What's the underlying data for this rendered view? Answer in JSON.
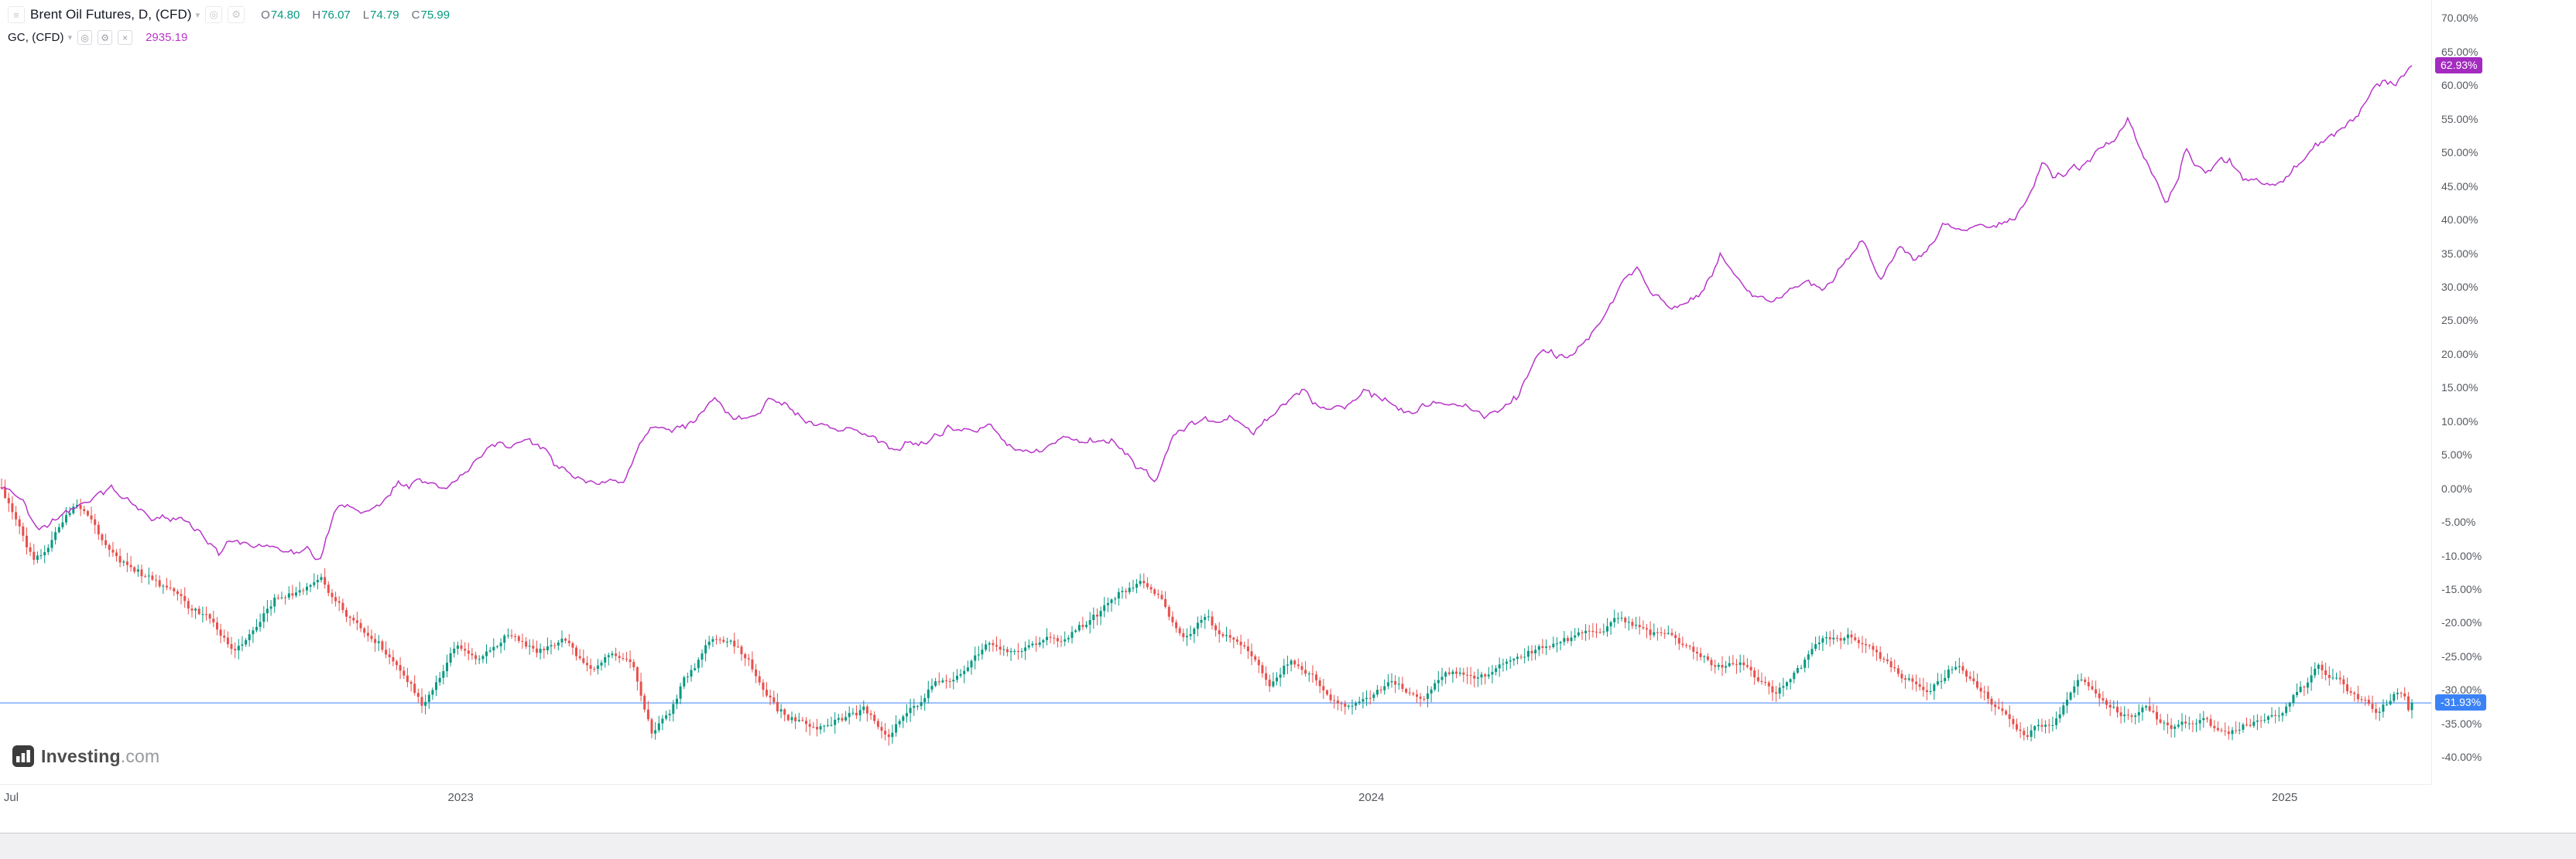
{
  "icons": {
    "instrument": "≡",
    "caret": "▾",
    "eye": "◎",
    "gear": "⚙",
    "close": "×"
  },
  "legend": {
    "main": {
      "title": "Brent Oil Futures, D, (CFD)",
      "ohlc": [
        {
          "label": "O",
          "value": "74.80"
        },
        {
          "label": "H",
          "value": "76.07"
        },
        {
          "label": "L",
          "value": "74.79"
        },
        {
          "label": "C",
          "value": "75.99"
        }
      ]
    },
    "overlay": {
      "title": "GC, (CFD)",
      "value": "2935.19"
    }
  },
  "footer": {
    "logo_bold": "Investing",
    "logo_light": ".com"
  },
  "chart_data": {
    "type": "mixed",
    "description": "Daily percent-change comparison since July 2022: Brent Oil Futures (CFD) candlesticks vs GC gold futures (CFD) line",
    "unit": "percent change",
    "grid": false,
    "y_axis": {
      "min": -44.0,
      "max": 72.7,
      "ticks": [
        "70.00%",
        "65.00%",
        "60.00%",
        "55.00%",
        "50.00%",
        "45.00%",
        "40.00%",
        "35.00%",
        "30.00%",
        "25.00%",
        "20.00%",
        "15.00%",
        "10.00%",
        "5.00%",
        "0.00%",
        "-5.00%",
        "-10.00%",
        "-15.00%",
        "-20.00%",
        "-25.00%",
        "-30.00%",
        "-35.00%",
        "-40.00%"
      ]
    },
    "x_ticks": [
      {
        "label": "Jul",
        "t": 0.004
      },
      {
        "label": "2023",
        "t": 0.1905
      },
      {
        "label": "2024",
        "t": 0.5683
      },
      {
        "label": "2025",
        "t": 0.9472
      }
    ],
    "series": [
      {
        "name": "Brent Oil Futures, D, (CFD)",
        "type": "candlestick",
        "up_color": "#089981",
        "down_color": "#e8504c",
        "last_value_pct": -31.93,
        "last_ohlc": {
          "open": "74.80",
          "high": "76.07",
          "low": "74.79",
          "close": "75.99"
        },
        "badge": {
          "label": "-31.93%",
          "color": "#3b82f6"
        },
        "last_line_color": "#3b82f6",
        "keypoints_pct": [
          [
            0,
            0
          ],
          [
            0.006,
            -4.5
          ],
          [
            0.013,
            -10.5
          ],
          [
            0.02,
            -8.5
          ],
          [
            0.031,
            -2
          ],
          [
            0.04,
            -7
          ],
          [
            0.052,
            -11.5
          ],
          [
            0.063,
            -13.5
          ],
          [
            0.075,
            -16.5
          ],
          [
            0.085,
            -19.5
          ],
          [
            0.097,
            -24
          ],
          [
            0.105,
            -21
          ],
          [
            0.113,
            -16.5
          ],
          [
            0.126,
            -15
          ],
          [
            0.133,
            -13.5
          ],
          [
            0.145,
            -20
          ],
          [
            0.157,
            -23.5
          ],
          [
            0.168,
            -28
          ],
          [
            0.175,
            -32.5
          ],
          [
            0.182,
            -28
          ],
          [
            0.189,
            -23
          ],
          [
            0.198,
            -25.5
          ],
          [
            0.21,
            -21.5
          ],
          [
            0.222,
            -24.3
          ],
          [
            0.232,
            -22.5
          ],
          [
            0.245,
            -27
          ],
          [
            0.251,
            -24.8
          ],
          [
            0.262,
            -26
          ],
          [
            0.27,
            -37
          ],
          [
            0.277,
            -33.5
          ],
          [
            0.283,
            -28.5
          ],
          [
            0.295,
            -22.5
          ],
          [
            0.305,
            -23.5
          ],
          [
            0.314,
            -28
          ],
          [
            0.322,
            -33
          ],
          [
            0.335,
            -35.5
          ],
          [
            0.346,
            -34.9
          ],
          [
            0.357,
            -33
          ],
          [
            0.368,
            -36.5
          ],
          [
            0.377,
            -32.9
          ],
          [
            0.388,
            -29
          ],
          [
            0.4,
            -27
          ],
          [
            0.409,
            -23.3
          ],
          [
            0.42,
            -24.5
          ],
          [
            0.432,
            -22.5
          ],
          [
            0.441,
            -22.1
          ],
          [
            0.455,
            -18.5
          ],
          [
            0.465,
            -15.5
          ],
          [
            0.472,
            -13.5
          ],
          [
            0.481,
            -16.5
          ],
          [
            0.49,
            -22
          ],
          [
            0.5,
            -19
          ],
          [
            0.504,
            -21.7
          ],
          [
            0.516,
            -23.5
          ],
          [
            0.526,
            -29
          ],
          [
            0.535,
            -25.8
          ],
          [
            0.546,
            -28.5
          ],
          [
            0.557,
            -33
          ],
          [
            0.567,
            -31
          ],
          [
            0.578,
            -29.5
          ],
          [
            0.59,
            -31.5
          ],
          [
            0.599,
            -26.8
          ],
          [
            0.611,
            -28.5
          ],
          [
            0.622,
            -26.5
          ],
          [
            0.629,
            -25.1
          ],
          [
            0.642,
            -23.5
          ],
          [
            0.653,
            -22
          ],
          [
            0.661,
            -21.6
          ],
          [
            0.672,
            -19
          ],
          [
            0.683,
            -21.5
          ],
          [
            0.693,
            -21.2
          ],
          [
            0.705,
            -25
          ],
          [
            0.716,
            -26.5
          ],
          [
            0.725,
            -26.9
          ],
          [
            0.736,
            -30.5
          ],
          [
            0.747,
            -26.5
          ],
          [
            0.756,
            -22.6
          ],
          [
            0.766,
            -21.8
          ],
          [
            0.777,
            -24.5
          ],
          [
            0.788,
            -27.7
          ],
          [
            0.798,
            -30.5
          ],
          [
            0.812,
            -26
          ],
          [
            0.82,
            -29.4
          ],
          [
            0.831,
            -33.5
          ],
          [
            0.84,
            -38
          ],
          [
            0.845,
            -35
          ],
          [
            0.851,
            -35.7
          ],
          [
            0.862,
            -28
          ],
          [
            0.872,
            -32
          ],
          [
            0.883,
            -34.4
          ],
          [
            0.89,
            -32.5
          ],
          [
            0.901,
            -35.5
          ],
          [
            0.914,
            -34.7
          ],
          [
            0.925,
            -36
          ],
          [
            0.936,
            -34.5
          ],
          [
            0.946,
            -33.1
          ],
          [
            0.955,
            -29.5
          ],
          [
            0.961,
            -26.5
          ],
          [
            0.97,
            -28.5
          ],
          [
            0.978,
            -31.2
          ],
          [
            0.986,
            -33
          ],
          [
            0.993,
            -30.5
          ],
          [
            1,
            -31.93
          ]
        ]
      },
      {
        "name": "GC, (CFD)",
        "type": "line",
        "color": "#b836c9",
        "last_value_pct": 62.93,
        "last_price": "2935.19",
        "badge": {
          "label": "62.93%",
          "color": "#a32bbf"
        },
        "keypoints_pct": [
          [
            0,
            0
          ],
          [
            0.008,
            -1.5
          ],
          [
            0.016,
            -6.3
          ],
          [
            0.024,
            -4
          ],
          [
            0.031,
            -2.2
          ],
          [
            0.045,
            -0.2
          ],
          [
            0.055,
            -2.5
          ],
          [
            0.063,
            -5
          ],
          [
            0.075,
            -4.2
          ],
          [
            0.085,
            -7.5
          ],
          [
            0.09,
            -9.9
          ],
          [
            0.094,
            -7.7
          ],
          [
            0.105,
            -8.3
          ],
          [
            0.117,
            -9.6
          ],
          [
            0.126,
            -9.3
          ],
          [
            0.132,
            -10.2
          ],
          [
            0.138,
            -3.5
          ],
          [
            0.143,
            -2.6
          ],
          [
            0.15,
            -3.2
          ],
          [
            0.157,
            -2.4
          ],
          [
            0.165,
            0.4
          ],
          [
            0.175,
            0.7
          ],
          [
            0.182,
            0.2
          ],
          [
            0.189,
            1.2
          ],
          [
            0.196,
            4
          ],
          [
            0.203,
            6.6
          ],
          [
            0.212,
            6.2
          ],
          [
            0.222,
            7
          ],
          [
            0.23,
            3.5
          ],
          [
            0.24,
            1.8
          ],
          [
            0.247,
            0.6
          ],
          [
            0.251,
            1.4
          ],
          [
            0.258,
            0.9
          ],
          [
            0.264,
            6.2
          ],
          [
            0.271,
            9.9
          ],
          [
            0.277,
            8.8
          ],
          [
            0.283,
            9.3
          ],
          [
            0.29,
            11
          ],
          [
            0.296,
            13.2
          ],
          [
            0.303,
            10.8
          ],
          [
            0.314,
            10.5
          ],
          [
            0.319,
            13.6
          ],
          [
            0.326,
            12.5
          ],
          [
            0.336,
            9.6
          ],
          [
            0.346,
            8.9
          ],
          [
            0.355,
            9
          ],
          [
            0.365,
            7
          ],
          [
            0.372,
            5.6
          ],
          [
            0.377,
            6.5
          ],
          [
            0.385,
            6.8
          ],
          [
            0.393,
            8.7
          ],
          [
            0.401,
            8.4
          ],
          [
            0.409,
            9.1
          ],
          [
            0.42,
            5.9
          ],
          [
            0.43,
            5.1
          ],
          [
            0.441,
            7.7
          ],
          [
            0.45,
            6.9
          ],
          [
            0.461,
            7.2
          ],
          [
            0.466,
            5.5
          ],
          [
            0.472,
            2.6
          ],
          [
            0.479,
            0.8
          ],
          [
            0.486,
            7.2
          ],
          [
            0.494,
            9.9
          ],
          [
            0.504,
            10.2
          ],
          [
            0.511,
            10.6
          ],
          [
            0.519,
            8.1
          ],
          [
            0.528,
            11
          ],
          [
            0.535,
            13
          ],
          [
            0.541,
            15
          ],
          [
            0.544,
            12.6
          ],
          [
            0.552,
            12
          ],
          [
            0.558,
            12.5
          ],
          [
            0.567,
            14.5
          ],
          [
            0.575,
            12.6
          ],
          [
            0.585,
            11.4
          ],
          [
            0.592,
            12
          ],
          [
            0.599,
            13.2
          ],
          [
            0.607,
            12.4
          ],
          [
            0.615,
            10.6
          ],
          [
            0.622,
            12
          ],
          [
            0.629,
            13.5
          ],
          [
            0.634,
            17.5
          ],
          [
            0.638,
            20.9
          ],
          [
            0.645,
            19.8
          ],
          [
            0.652,
            20
          ],
          [
            0.661,
            23.8
          ],
          [
            0.666,
            26.5
          ],
          [
            0.672,
            30.1
          ],
          [
            0.679,
            32.6
          ],
          [
            0.684,
            29.2
          ],
          [
            0.693,
            26.9
          ],
          [
            0.7,
            28.2
          ],
          [
            0.707,
            30.5
          ],
          [
            0.713,
            34.5
          ],
          [
            0.719,
            31
          ],
          [
            0.725,
            29.2
          ],
          [
            0.733,
            27.5
          ],
          [
            0.74,
            28.8
          ],
          [
            0.748,
            30.9
          ],
          [
            0.756,
            29.2
          ],
          [
            0.762,
            32
          ],
          [
            0.766,
            34
          ],
          [
            0.772,
            37
          ],
          [
            0.78,
            31.2
          ],
          [
            0.788,
            35.9
          ],
          [
            0.794,
            33.8
          ],
          [
            0.8,
            35.5
          ],
          [
            0.806,
            39.2
          ],
          [
            0.813,
            38.5
          ],
          [
            0.82,
            38.9
          ],
          [
            0.828,
            39.3
          ],
          [
            0.835,
            40.5
          ],
          [
            0.841,
            43.5
          ],
          [
            0.847,
            48.3
          ],
          [
            0.851,
            46.3
          ],
          [
            0.857,
            47
          ],
          [
            0.864,
            48.5
          ],
          [
            0.871,
            51
          ],
          [
            0.877,
            52
          ],
          [
            0.882,
            54.6
          ],
          [
            0.886,
            52.3
          ],
          [
            0.891,
            47.6
          ],
          [
            0.898,
            42.3
          ],
          [
            0.903,
            46
          ],
          [
            0.906,
            50.3
          ],
          [
            0.91,
            47.5
          ],
          [
            0.914,
            46.9
          ],
          [
            0.92,
            48
          ],
          [
            0.924,
            49.1
          ],
          [
            0.93,
            45.9
          ],
          [
            0.938,
            45.3
          ],
          [
            0.946,
            45.7
          ],
          [
            0.951,
            47.5
          ],
          [
            0.956,
            49.3
          ],
          [
            0.962,
            51.5
          ],
          [
            0.968,
            52.4
          ],
          [
            0.973,
            54.5
          ],
          [
            0.978,
            56.1
          ],
          [
            0.983,
            58.8
          ],
          [
            0.988,
            60.9
          ],
          [
            0.993,
            59.8
          ],
          [
            1,
            62.93
          ]
        ]
      }
    ],
    "render": {
      "candle_count": 672,
      "line_samples": 900
    }
  }
}
